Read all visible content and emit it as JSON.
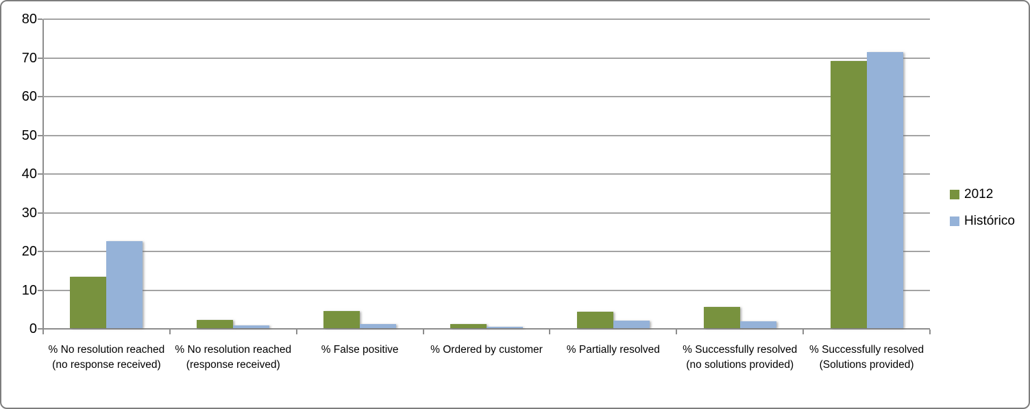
{
  "chart_data": {
    "type": "bar",
    "title": "",
    "xlabel": "",
    "ylabel": "",
    "ylim": [
      0,
      80
    ],
    "yticks": [
      0,
      10,
      20,
      30,
      40,
      50,
      60,
      70,
      80
    ],
    "grid": true,
    "legend_position": "right",
    "categories": [
      "% No resolution reached (no response received)",
      "% No resolution reached (response received)",
      "% False positive",
      "% Ordered by customer",
      "% Partially resolved",
      "% Successfully resolved (no solutions provided)",
      "% Successfully resolved (Solutions provided)"
    ],
    "series": [
      {
        "name": "2012",
        "color": "#78923E",
        "values": [
          13.3,
          2.2,
          4.4,
          1.0,
          4.2,
          5.5,
          69.0
        ]
      },
      {
        "name": "Histórico",
        "color": "#95B2D8",
        "values": [
          22.4,
          0.7,
          1.0,
          0.4,
          2.0,
          1.8,
          71.3
        ]
      }
    ]
  },
  "colors": {
    "background": "#ffffff",
    "border": "#7d7d7d",
    "gridline": "#a3a3a3",
    "axis": "#8c8c8c",
    "text": "#000000"
  }
}
